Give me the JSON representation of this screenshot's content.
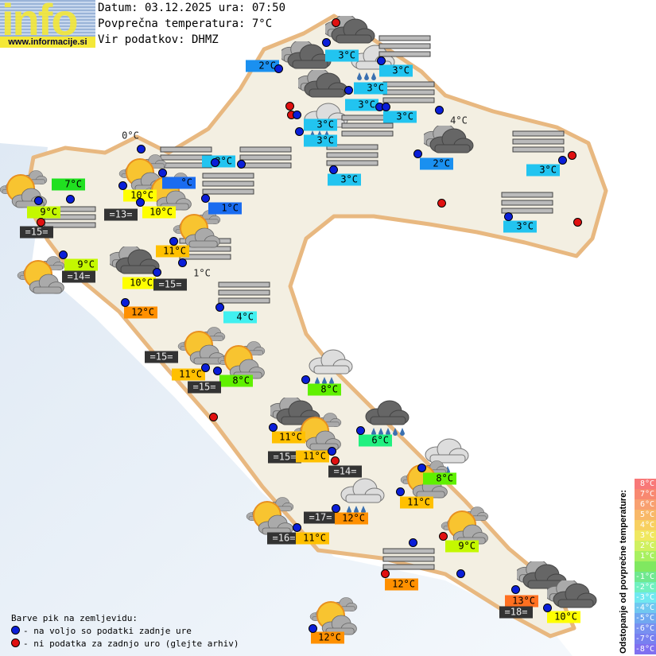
{
  "header": {
    "logo_text": "info",
    "logo_url": "www.informacije.si",
    "date_line": "Datum: 03.12.2025 ura: 07:50",
    "avg_temp_line": "Povprečna temperatura: 7°C",
    "source_line": "Vir podatkov: DHMZ"
  },
  "colors": {
    "station_ok": "#0a1ed8",
    "station_missing": "#e01010",
    "sea_label": "#333333"
  },
  "stations": [
    {
      "status": "missing"
    },
    {
      "status": "ok"
    },
    {
      "status": "ok"
    },
    {
      "status": "ok"
    },
    {
      "status": "ok"
    },
    {
      "status": "missing"
    },
    {
      "status": "missing"
    },
    {
      "status": "ok"
    },
    {
      "status": "ok"
    },
    {
      "status": "ok"
    },
    {
      "status": "ok"
    },
    {
      "status": "ok"
    },
    {
      "status": "ok"
    },
    {
      "status": "ok"
    },
    {
      "status": "missing"
    },
    {
      "status": "missing"
    },
    {
      "status": "ok"
    },
    {
      "status": "missing"
    },
    {
      "status": "ok"
    },
    {
      "status": "ok"
    },
    {
      "status": "ok"
    },
    {
      "status": "ok"
    },
    {
      "status": "ok"
    },
    {
      "status": "ok"
    },
    {
      "status": "ok"
    },
    {
      "status": "ok"
    },
    {
      "status": "ok"
    },
    {
      "status": "missing"
    },
    {
      "status": "ok"
    },
    {
      "status": "ok"
    },
    {
      "status": "ok"
    },
    {
      "status": "ok"
    },
    {
      "status": "ok"
    },
    {
      "status": "ok"
    },
    {
      "status": "ok"
    },
    {
      "status": "ok"
    },
    {
      "status": "ok"
    },
    {
      "status": "missing"
    },
    {
      "status": "ok"
    },
    {
      "status": "ok"
    },
    {
      "status": "ok"
    },
    {
      "status": "missing"
    },
    {
      "status": "ok"
    },
    {
      "status": "ok"
    },
    {
      "status": "ok"
    },
    {
      "status": "ok"
    },
    {
      "status": "ok"
    },
    {
      "status": "missing"
    },
    {
      "status": "ok"
    },
    {
      "status": "missing"
    },
    {
      "status": "ok"
    },
    {
      "status": "ok"
    },
    {
      "status": "ok"
    },
    {
      "status": "ok"
    }
  ],
  "labels": [
    {
      "text": "3°C",
      "kind": "air",
      "color": "#22c4f0"
    },
    {
      "text": "2°C",
      "kind": "air",
      "color": "#1a90f0"
    },
    {
      "text": "3°C",
      "kind": "air",
      "color": "#22c4f0"
    },
    {
      "text": "3°C",
      "kind": "air",
      "color": "#22c4f0"
    },
    {
      "text": "3°C",
      "kind": "air",
      "color": "#22c4f0"
    },
    {
      "text": "3°C",
      "kind": "air",
      "color": "#22c4f0"
    },
    {
      "text": "3°C",
      "kind": "air",
      "color": "#22c4f0"
    },
    {
      "text": "3°C",
      "kind": "air",
      "color": "#22c4f0"
    },
    {
      "text": "4°C",
      "kind": "plain",
      "color": ""
    },
    {
      "text": "2°C",
      "kind": "air",
      "color": "#1a90f0"
    },
    {
      "text": "3°C",
      "kind": "air",
      "color": "#22c4f0"
    },
    {
      "text": "3°C",
      "kind": "air",
      "color": "#22c4f0"
    },
    {
      "text": "3°C",
      "kind": "air",
      "color": "#22c4f0"
    },
    {
      "text": "1°C",
      "kind": "air",
      "color": "#1a6cf0"
    },
    {
      "text": "3°C",
      "kind": "air",
      "color": "#22c4f0"
    },
    {
      "text": "0°C",
      "kind": "plain",
      "color": ""
    },
    {
      "text": "7°C",
      "kind": "air",
      "color": "#20e020"
    },
    {
      "text": "°C",
      "kind": "air",
      "color": "#1a6cf0"
    },
    {
      "text": "10°C",
      "kind": "air",
      "color": "#ffff00"
    },
    {
      "text": "10°C",
      "kind": "air",
      "color": "#ffff00"
    },
    {
      "text": "=13=",
      "kind": "sea",
      "color": "#333333"
    },
    {
      "text": "9°C",
      "kind": "air",
      "color": "#c4f800"
    },
    {
      "text": "=15=",
      "kind": "sea",
      "color": "#333333"
    },
    {
      "text": "9°C",
      "kind": "air",
      "color": "#c4f800"
    },
    {
      "text": "=14=",
      "kind": "sea",
      "color": "#333333"
    },
    {
      "text": "11°C",
      "kind": "air",
      "color": "#ffc000"
    },
    {
      "text": "10°C",
      "kind": "air",
      "color": "#ffff00"
    },
    {
      "text": "=15=",
      "kind": "sea",
      "color": "#333333"
    },
    {
      "text": "1°C",
      "kind": "plain",
      "color": ""
    },
    {
      "text": "12°C",
      "kind": "air",
      "color": "#ff9000"
    },
    {
      "text": "4°C",
      "kind": "air",
      "color": "#40f0f0"
    },
    {
      "text": "=15=",
      "kind": "sea",
      "color": "#333333"
    },
    {
      "text": "11°C",
      "kind": "air",
      "color": "#ffc000"
    },
    {
      "text": "8°C",
      "kind": "air",
      "color": "#60f000"
    },
    {
      "text": "=15=",
      "kind": "sea",
      "color": "#333333"
    },
    {
      "text": "8°C",
      "kind": "air",
      "color": "#60f000"
    },
    {
      "text": "11°C",
      "kind": "air",
      "color": "#ffc000"
    },
    {
      "text": "6°C",
      "kind": "air",
      "color": "#20f080"
    },
    {
      "text": "=15=",
      "kind": "sea",
      "color": "#333333"
    },
    {
      "text": "11°C",
      "kind": "air",
      "color": "#ffc000"
    },
    {
      "text": "=14=",
      "kind": "sea",
      "color": "#333333"
    },
    {
      "text": "8°C",
      "kind": "air",
      "color": "#60f000"
    },
    {
      "text": "11°C",
      "kind": "air",
      "color": "#ffc000"
    },
    {
      "text": "=17=",
      "kind": "sea",
      "color": "#333333"
    },
    {
      "text": "12°C",
      "kind": "air",
      "color": "#ff9000"
    },
    {
      "text": "=16=",
      "kind": "sea",
      "color": "#333333"
    },
    {
      "text": "11°C",
      "kind": "air",
      "color": "#ffc000"
    },
    {
      "text": "9°C",
      "kind": "air",
      "color": "#c4f800"
    },
    {
      "text": "12°C",
      "kind": "air",
      "color": "#ff9000"
    },
    {
      "text": "13°C",
      "kind": "air",
      "color": "#ff7020"
    },
    {
      "text": "=18=",
      "kind": "sea",
      "color": "#333333"
    },
    {
      "text": "10°C",
      "kind": "air",
      "color": "#ffff00"
    },
    {
      "text": "12°C",
      "kind": "air",
      "color": "#ff9000"
    }
  ],
  "icons": [
    "overcast-cloud-icon",
    "overcast-cloud-icon",
    "overcast-cloud-icon",
    "overcast-cloud-icon",
    "overcast-cloud-icon",
    "overcast-cloud-icon",
    "overcast-cloud-icon",
    "overcast-cloud-icon",
    "rain-cloud-icon",
    "rain-cloud-icon",
    "rain-cloud-icon",
    "rain-cloud-icon",
    "rain-cloud-icon",
    "heavy-rain-cloud-icon",
    "fog-icon",
    "fog-icon",
    "fog-icon",
    "fog-icon",
    "fog-icon",
    "fog-icon",
    "fog-icon",
    "fog-icon",
    "fog-icon",
    "fog-icon",
    "fog-icon",
    "fog-icon",
    "fog-icon",
    "partly-sunny-icon",
    "partly-sunny-icon",
    "partly-sunny-icon",
    "partly-sunny-icon",
    "partly-sunny-icon",
    "partly-sunny-icon",
    "partly-sunny-icon",
    "partly-sunny-icon",
    "partly-sunny-icon",
    "partly-sunny-icon",
    "partly-sunny-icon",
    "partly-sunny-icon"
  ],
  "legend": {
    "title": "Barve pik na zemljevidu:",
    "ok": "- na voljo so podatki zadnje ure",
    "missing": "- ni podatka za zadnjo uro (glejte arhiv)"
  },
  "scale": {
    "title": "Odstopanje od povprečne temperature:",
    "steps": [
      {
        "label": "8°C",
        "color": "#f87878"
      },
      {
        "label": "7°C",
        "color": "#f88870"
      },
      {
        "label": "6°C",
        "color": "#f8a070"
      },
      {
        "label": "5°C",
        "color": "#f8b868"
      },
      {
        "label": "4°C",
        "color": "#f8d060"
      },
      {
        "label": "3°C",
        "color": "#f0e860"
      },
      {
        "label": "2°C",
        "color": "#d0f060"
      },
      {
        "label": "1°C",
        "color": "#a8f060"
      },
      {
        "label": "",
        "color": "#80e860"
      },
      {
        "label": "-1°C",
        "color": "#70e890"
      },
      {
        "label": "-2°C",
        "color": "#70f0c0"
      },
      {
        "label": "-3°C",
        "color": "#70e8f0"
      },
      {
        "label": "-4°C",
        "color": "#70c8f0"
      },
      {
        "label": "-5°C",
        "color": "#70a8f0"
      },
      {
        "label": "-6°C",
        "color": "#7890f0"
      },
      {
        "label": "-7°C",
        "color": "#7880f0"
      },
      {
        "label": "-8°C",
        "color": "#8070f0"
      }
    ]
  }
}
